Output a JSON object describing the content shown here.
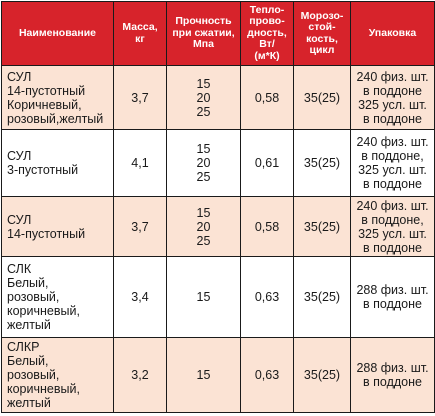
{
  "header": {
    "name": "Наименование",
    "mass": [
      "Масса,",
      "кг"
    ],
    "strength": [
      "Прочность",
      "при сжатии,",
      "Мпа"
    ],
    "conductivity": [
      "Тепло-",
      "прово-",
      "дность,",
      "Вт/",
      "(м*К)"
    ],
    "frost": [
      "Морозо-",
      "стой-",
      "кость,",
      "цикл"
    ],
    "packing": "Упаковка"
  },
  "rows": [
    {
      "name": [
        "СУЛ",
        "14-пустотный",
        "Коричневый,",
        "розовый,желтый"
      ],
      "mass": "3,7",
      "strength": [
        "15",
        "20",
        "25"
      ],
      "conductivity": "0,58",
      "frost": "35(25)",
      "packing": [
        "240 физ. шт.",
        "в поддоне",
        "325 усл. шт.",
        "в поддоне"
      ]
    },
    {
      "name": [
        "СУЛ",
        "3-пустотный"
      ],
      "mass": "4,1",
      "strength": [
        "15",
        "20",
        "25"
      ],
      "conductivity": "0,61",
      "frost": "35(25)",
      "packing": [
        "240 физ. шт.",
        "в поддоне,",
        "325 усл. шт.",
        "в поддоне"
      ]
    },
    {
      "name": [
        "СУЛ",
        "14-пустотный"
      ],
      "mass": "3,7",
      "strength": [
        "15",
        "20",
        "25"
      ],
      "conductivity": "0,58",
      "frost": "35(25)",
      "packing": [
        "240 физ. шт.",
        "в поддоне,",
        "325 усл. шт.",
        "в поддоне"
      ]
    },
    {
      "name": [
        "СЛК",
        "Белый,",
        "розовый,",
        "коричневый,",
        "желтый"
      ],
      "mass": "3,4",
      "strength": [
        "15"
      ],
      "conductivity": "0,63",
      "frost": "35(25)",
      "packing": [
        "288 физ. шт.",
        "в поддоне"
      ]
    },
    {
      "name": [
        "СЛКР",
        "Белый,",
        "розовый,",
        "коричневый,",
        "желтый"
      ],
      "mass": "3,2",
      "strength": [
        "15"
      ],
      "conductivity": "0,63",
      "frost": "35(25)",
      "packing": [
        "288 физ. шт.",
        "в поддоне"
      ]
    }
  ],
  "colors": {
    "header_bg": "#d7232b",
    "header_text": "#ffffff",
    "shaded_row": "#fbe3d4",
    "white_row": "#ffffff",
    "border": "#1a1a1a"
  }
}
